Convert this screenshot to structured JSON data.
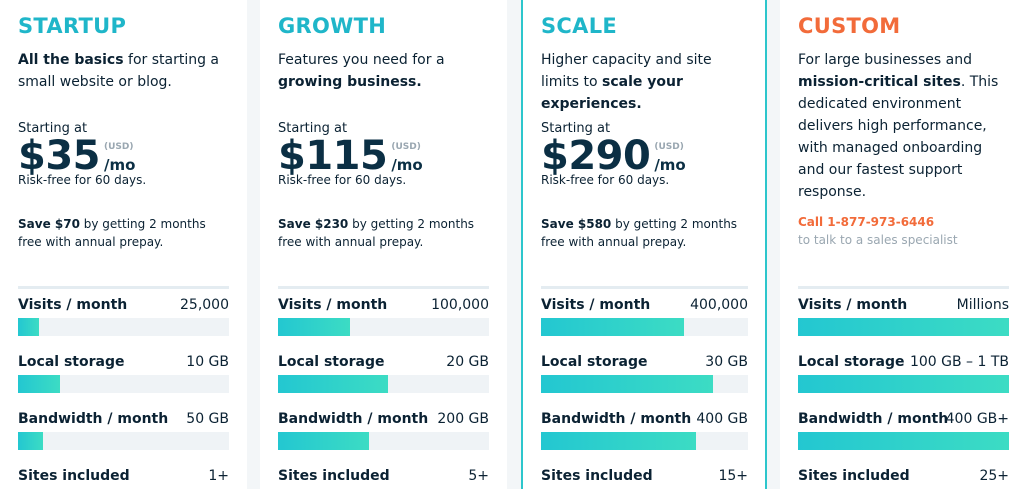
{
  "plans": [
    {
      "name": "STARTUP",
      "highlighted": false,
      "description": [
        {
          "text": "All the basics",
          "bold": true
        },
        {
          "text": " for starting a small website or blog.",
          "bold": false
        }
      ],
      "starting_label": "Starting at",
      "price": "$35",
      "currency": "(USD)",
      "period": "/mo",
      "guarantee": "Risk-free for 60 days.",
      "savings": [
        {
          "text": "Save $70",
          "bold": true
        },
        {
          "text": " by getting 2 months free with annual prepay.",
          "bold": false
        }
      ],
      "features": [
        {
          "label": "Visits / month",
          "value": "25,000"
        },
        {
          "label": "Local storage",
          "value": "10 GB"
        },
        {
          "label": "Bandwidth / month",
          "value": "50 GB"
        },
        {
          "label": "Sites included",
          "value": "1+"
        }
      ]
    },
    {
      "name": "GROWTH",
      "highlighted": false,
      "description": [
        {
          "text": "Features you need for a ",
          "bold": false
        },
        {
          "text": "growing business.",
          "bold": true
        }
      ],
      "starting_label": "Starting at",
      "price": "$115",
      "currency": "(USD)",
      "period": "/mo",
      "guarantee": "Risk-free for 60 days.",
      "savings": [
        {
          "text": "Save $230",
          "bold": true
        },
        {
          "text": " by getting 2 months free with annual prepay.",
          "bold": false
        }
      ],
      "features": [
        {
          "label": "Visits / month",
          "value": "100,000"
        },
        {
          "label": "Local storage",
          "value": "20 GB"
        },
        {
          "label": "Bandwidth / month",
          "value": "200 GB"
        },
        {
          "label": "Sites included",
          "value": "5+"
        }
      ]
    },
    {
      "name": "SCALE",
      "highlighted": true,
      "description": [
        {
          "text": "Higher capacity and site limits to ",
          "bold": false
        },
        {
          "text": "scale your experiences.",
          "bold": true
        }
      ],
      "starting_label": "Starting at",
      "price": "$290",
      "currency": "(USD)",
      "period": "/mo",
      "guarantee": "Risk-free for 60 days.",
      "savings": [
        {
          "text": "Save $580",
          "bold": true
        },
        {
          "text": " by getting 2 months free with annual prepay.",
          "bold": false
        }
      ],
      "features": [
        {
          "label": "Visits / month",
          "value": "400,000"
        },
        {
          "label": "Local storage",
          "value": "30 GB"
        },
        {
          "label": "Bandwidth / month",
          "value": "400 GB"
        },
        {
          "label": "Sites included",
          "value": "15+"
        }
      ]
    },
    {
      "name": "CUSTOM",
      "highlighted": false,
      "description": [
        {
          "text": "For large businesses and ",
          "bold": false
        },
        {
          "text": "mission-critical sites",
          "bold": true
        },
        {
          "text": ". This dedicated environment delivers high performance, with managed onboarding and our fastest support response.",
          "bold": false
        }
      ],
      "contact": {
        "phone": "Call 1-877-973-6446",
        "note": "to talk to a sales specialist"
      },
      "features": [
        {
          "label": "Visits / month",
          "value": "Millions"
        },
        {
          "label": "Local storage",
          "value": "100 GB – 1 TB"
        },
        {
          "label": "Bandwidth / month",
          "value": "400 GB+"
        },
        {
          "label": "Sites included",
          "value": "25+"
        }
      ]
    }
  ]
}
